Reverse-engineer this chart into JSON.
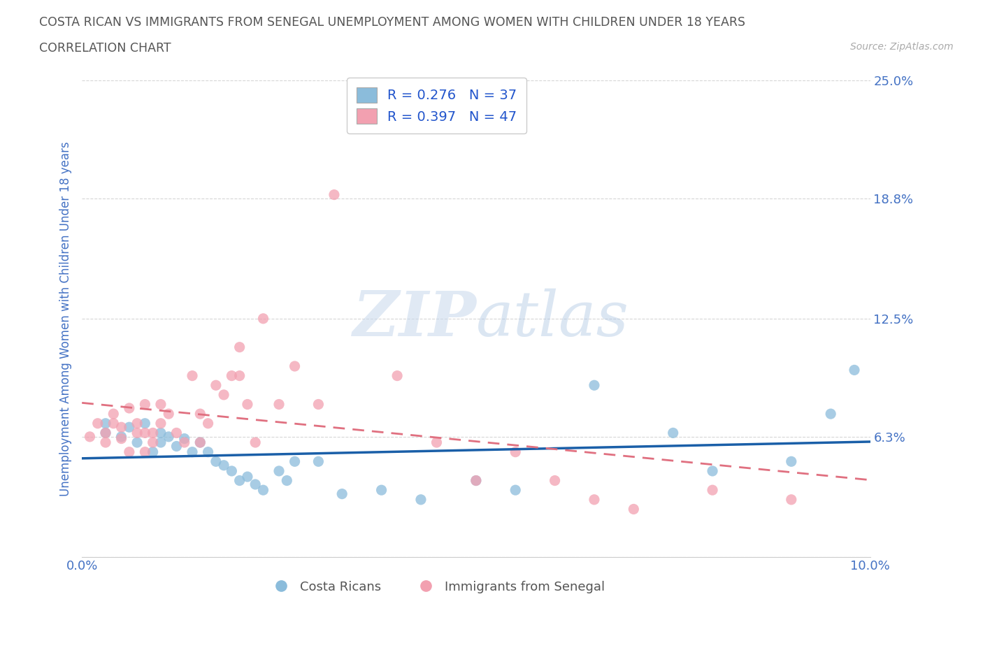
{
  "title_line1": "COSTA RICAN VS IMMIGRANTS FROM SENEGAL UNEMPLOYMENT AMONG WOMEN WITH CHILDREN UNDER 18 YEARS",
  "title_line2": "CORRELATION CHART",
  "source_text": "Source: ZipAtlas.com",
  "ylabel": "Unemployment Among Women with Children Under 18 years",
  "xlim": [
    0.0,
    0.1
  ],
  "ylim": [
    0.0,
    0.25
  ],
  "yticks": [
    0.0,
    0.063,
    0.125,
    0.188,
    0.25
  ],
  "ytick_labels": [
    "",
    "6.3%",
    "12.5%",
    "18.8%",
    "25.0%"
  ],
  "xticks": [
    0.0,
    0.025,
    0.05,
    0.075,
    0.1
  ],
  "xtick_labels": [
    "0.0%",
    "",
    "",
    "",
    "10.0%"
  ],
  "blue_color": "#8BBCDB",
  "pink_color": "#F2A0B0",
  "blue_line_color": "#1A5FA8",
  "pink_line_color": "#E07080",
  "legend_text_color": "#2255CC",
  "r_blue": 0.276,
  "n_blue": 37,
  "r_pink": 0.397,
  "n_pink": 47,
  "watermark_part1": "ZIP",
  "watermark_part2": "atlas",
  "title_color": "#555555",
  "axis_label_color": "#4472C4",
  "tick_color": "#4472C4",
  "blue_scatter_x": [
    0.003,
    0.003,
    0.005,
    0.006,
    0.007,
    0.008,
    0.009,
    0.01,
    0.01,
    0.011,
    0.012,
    0.013,
    0.014,
    0.015,
    0.016,
    0.017,
    0.018,
    0.019,
    0.02,
    0.021,
    0.022,
    0.023,
    0.025,
    0.026,
    0.027,
    0.03,
    0.033,
    0.038,
    0.043,
    0.05,
    0.055,
    0.065,
    0.075,
    0.08,
    0.09,
    0.095,
    0.098
  ],
  "blue_scatter_y": [
    0.065,
    0.07,
    0.063,
    0.068,
    0.06,
    0.07,
    0.055,
    0.06,
    0.065,
    0.063,
    0.058,
    0.062,
    0.055,
    0.06,
    0.055,
    0.05,
    0.048,
    0.045,
    0.04,
    0.042,
    0.038,
    0.035,
    0.045,
    0.04,
    0.05,
    0.05,
    0.033,
    0.035,
    0.03,
    0.04,
    0.035,
    0.09,
    0.065,
    0.045,
    0.05,
    0.075,
    0.098
  ],
  "pink_scatter_x": [
    0.001,
    0.002,
    0.003,
    0.003,
    0.004,
    0.004,
    0.005,
    0.005,
    0.006,
    0.006,
    0.007,
    0.007,
    0.008,
    0.008,
    0.008,
    0.009,
    0.009,
    0.01,
    0.01,
    0.011,
    0.012,
    0.013,
    0.014,
    0.015,
    0.015,
    0.016,
    0.017,
    0.018,
    0.019,
    0.02,
    0.02,
    0.021,
    0.022,
    0.023,
    0.025,
    0.027,
    0.03,
    0.032,
    0.04,
    0.045,
    0.05,
    0.055,
    0.06,
    0.065,
    0.07,
    0.08,
    0.09
  ],
  "pink_scatter_y": [
    0.063,
    0.07,
    0.06,
    0.065,
    0.07,
    0.075,
    0.062,
    0.068,
    0.055,
    0.078,
    0.065,
    0.07,
    0.055,
    0.065,
    0.08,
    0.06,
    0.065,
    0.07,
    0.08,
    0.075,
    0.065,
    0.06,
    0.095,
    0.06,
    0.075,
    0.07,
    0.09,
    0.085,
    0.095,
    0.095,
    0.11,
    0.08,
    0.06,
    0.125,
    0.08,
    0.1,
    0.08,
    0.19,
    0.095,
    0.06,
    0.04,
    0.055,
    0.04,
    0.03,
    0.025,
    0.035,
    0.03
  ],
  "grid_color": "#CCCCCC",
  "background_color": "#FFFFFF",
  "legend_border_color": "#CCCCCC"
}
